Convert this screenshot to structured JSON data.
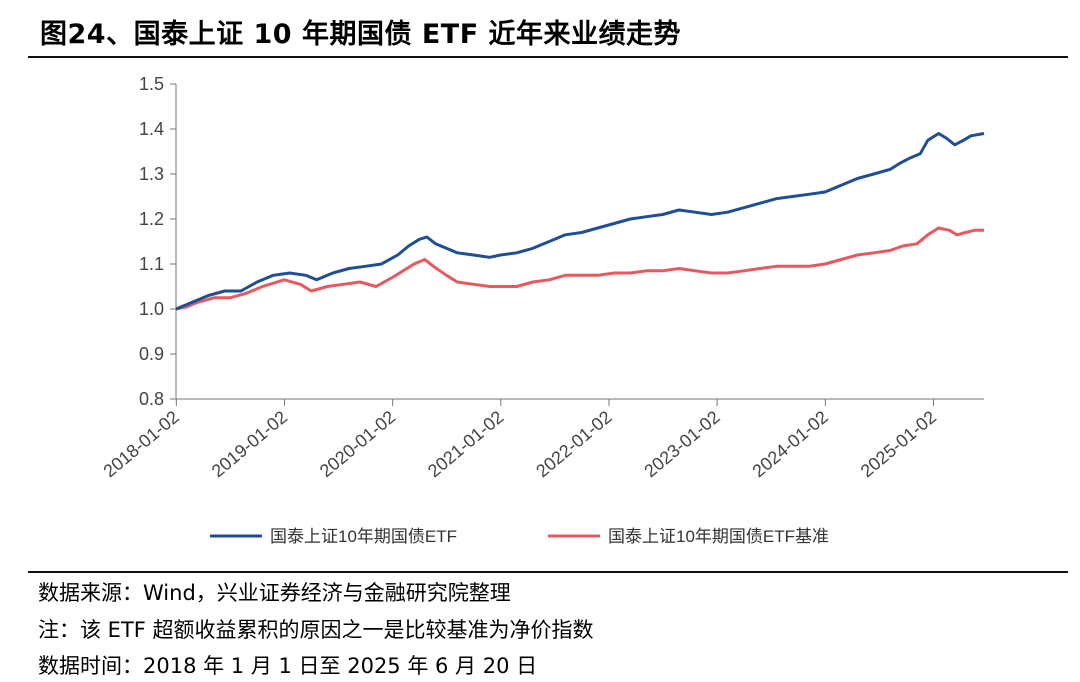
{
  "title": "图24、国泰上证 10 年期国债 ETF 近年来业绩走势",
  "notes": {
    "source": "数据来源：Wind，兴业证券经济与金融研究院整理",
    "note": "注：该 ETF 超额收益累积的原因之一是比较基准为净价指数",
    "period": "数据时间：2018 年 1 月 1 日至 2025 年 6 月 20 日"
  },
  "chart_data": {
    "type": "line",
    "ylim": [
      0.8,
      1.5
    ],
    "yticks": [
      "0.8",
      "0.9",
      "1.0",
      "1.1",
      "1.2",
      "1.3",
      "1.4",
      "1.5"
    ],
    "xlim": [
      2018.0,
      2025.47
    ],
    "xticks": [
      "2018-01-02",
      "2019-01-02",
      "2020-01-02",
      "2021-01-02",
      "2022-01-02",
      "2023-01-02",
      "2024-01-02",
      "2025-01-02"
    ],
    "legend_position": "bottom",
    "grid": false,
    "series": [
      {
        "name": "国泰上证10年期国债ETF",
        "color": "#1F4E96",
        "points": [
          [
            2018.0,
            1.0
          ],
          [
            2018.1,
            1.01
          ],
          [
            2018.2,
            1.02
          ],
          [
            2018.3,
            1.03
          ],
          [
            2018.45,
            1.04
          ],
          [
            2018.6,
            1.04
          ],
          [
            2018.75,
            1.06
          ],
          [
            2018.9,
            1.075
          ],
          [
            2019.05,
            1.08
          ],
          [
            2019.2,
            1.075
          ],
          [
            2019.3,
            1.065
          ],
          [
            2019.45,
            1.08
          ],
          [
            2019.6,
            1.09
          ],
          [
            2019.75,
            1.095
          ],
          [
            2019.9,
            1.1
          ],
          [
            2020.05,
            1.12
          ],
          [
            2020.15,
            1.14
          ],
          [
            2020.25,
            1.155
          ],
          [
            2020.32,
            1.16
          ],
          [
            2020.4,
            1.145
          ],
          [
            2020.5,
            1.135
          ],
          [
            2020.6,
            1.125
          ],
          [
            2020.75,
            1.12
          ],
          [
            2020.9,
            1.115
          ],
          [
            2021.0,
            1.12
          ],
          [
            2021.15,
            1.125
          ],
          [
            2021.3,
            1.135
          ],
          [
            2021.45,
            1.15
          ],
          [
            2021.6,
            1.165
          ],
          [
            2021.75,
            1.17
          ],
          [
            2021.9,
            1.18
          ],
          [
            2022.05,
            1.19
          ],
          [
            2022.2,
            1.2
          ],
          [
            2022.35,
            1.205
          ],
          [
            2022.5,
            1.21
          ],
          [
            2022.65,
            1.22
          ],
          [
            2022.8,
            1.215
          ],
          [
            2022.95,
            1.21
          ],
          [
            2023.1,
            1.215
          ],
          [
            2023.25,
            1.225
          ],
          [
            2023.4,
            1.235
          ],
          [
            2023.55,
            1.245
          ],
          [
            2023.7,
            1.25
          ],
          [
            2023.85,
            1.255
          ],
          [
            2024.0,
            1.26
          ],
          [
            2024.15,
            1.275
          ],
          [
            2024.3,
            1.29
          ],
          [
            2024.45,
            1.3
          ],
          [
            2024.6,
            1.31
          ],
          [
            2024.7,
            1.325
          ],
          [
            2024.78,
            1.335
          ],
          [
            2024.88,
            1.345
          ],
          [
            2024.95,
            1.375
          ],
          [
            2025.05,
            1.39
          ],
          [
            2025.12,
            1.38
          ],
          [
            2025.2,
            1.365
          ],
          [
            2025.28,
            1.375
          ],
          [
            2025.35,
            1.385
          ],
          [
            2025.47,
            1.39
          ]
        ]
      },
      {
        "name": "国泰上证10年期国债ETF基准",
        "color": "#E8595F",
        "points": [
          [
            2018.0,
            1.0
          ],
          [
            2018.1,
            1.005
          ],
          [
            2018.2,
            1.015
          ],
          [
            2018.35,
            1.025
          ],
          [
            2018.5,
            1.025
          ],
          [
            2018.65,
            1.035
          ],
          [
            2018.8,
            1.05
          ],
          [
            2019.0,
            1.065
          ],
          [
            2019.15,
            1.055
          ],
          [
            2019.25,
            1.04
          ],
          [
            2019.4,
            1.05
          ],
          [
            2019.55,
            1.055
          ],
          [
            2019.7,
            1.06
          ],
          [
            2019.85,
            1.05
          ],
          [
            2020.0,
            1.07
          ],
          [
            2020.1,
            1.085
          ],
          [
            2020.2,
            1.1
          ],
          [
            2020.3,
            1.11
          ],
          [
            2020.38,
            1.095
          ],
          [
            2020.5,
            1.075
          ],
          [
            2020.6,
            1.06
          ],
          [
            2020.75,
            1.055
          ],
          [
            2020.9,
            1.05
          ],
          [
            2021.0,
            1.05
          ],
          [
            2021.15,
            1.05
          ],
          [
            2021.3,
            1.06
          ],
          [
            2021.45,
            1.065
          ],
          [
            2021.6,
            1.075
          ],
          [
            2021.75,
            1.075
          ],
          [
            2021.9,
            1.075
          ],
          [
            2022.05,
            1.08
          ],
          [
            2022.2,
            1.08
          ],
          [
            2022.35,
            1.085
          ],
          [
            2022.5,
            1.085
          ],
          [
            2022.65,
            1.09
          ],
          [
            2022.8,
            1.085
          ],
          [
            2022.95,
            1.08
          ],
          [
            2023.1,
            1.08
          ],
          [
            2023.25,
            1.085
          ],
          [
            2023.4,
            1.09
          ],
          [
            2023.55,
            1.095
          ],
          [
            2023.7,
            1.095
          ],
          [
            2023.85,
            1.095
          ],
          [
            2024.0,
            1.1
          ],
          [
            2024.15,
            1.11
          ],
          [
            2024.3,
            1.12
          ],
          [
            2024.45,
            1.125
          ],
          [
            2024.6,
            1.13
          ],
          [
            2024.72,
            1.14
          ],
          [
            2024.85,
            1.145
          ],
          [
            2024.95,
            1.165
          ],
          [
            2025.05,
            1.18
          ],
          [
            2025.15,
            1.175
          ],
          [
            2025.22,
            1.165
          ],
          [
            2025.3,
            1.17
          ],
          [
            2025.38,
            1.175
          ],
          [
            2025.47,
            1.175
          ]
        ]
      }
    ]
  }
}
